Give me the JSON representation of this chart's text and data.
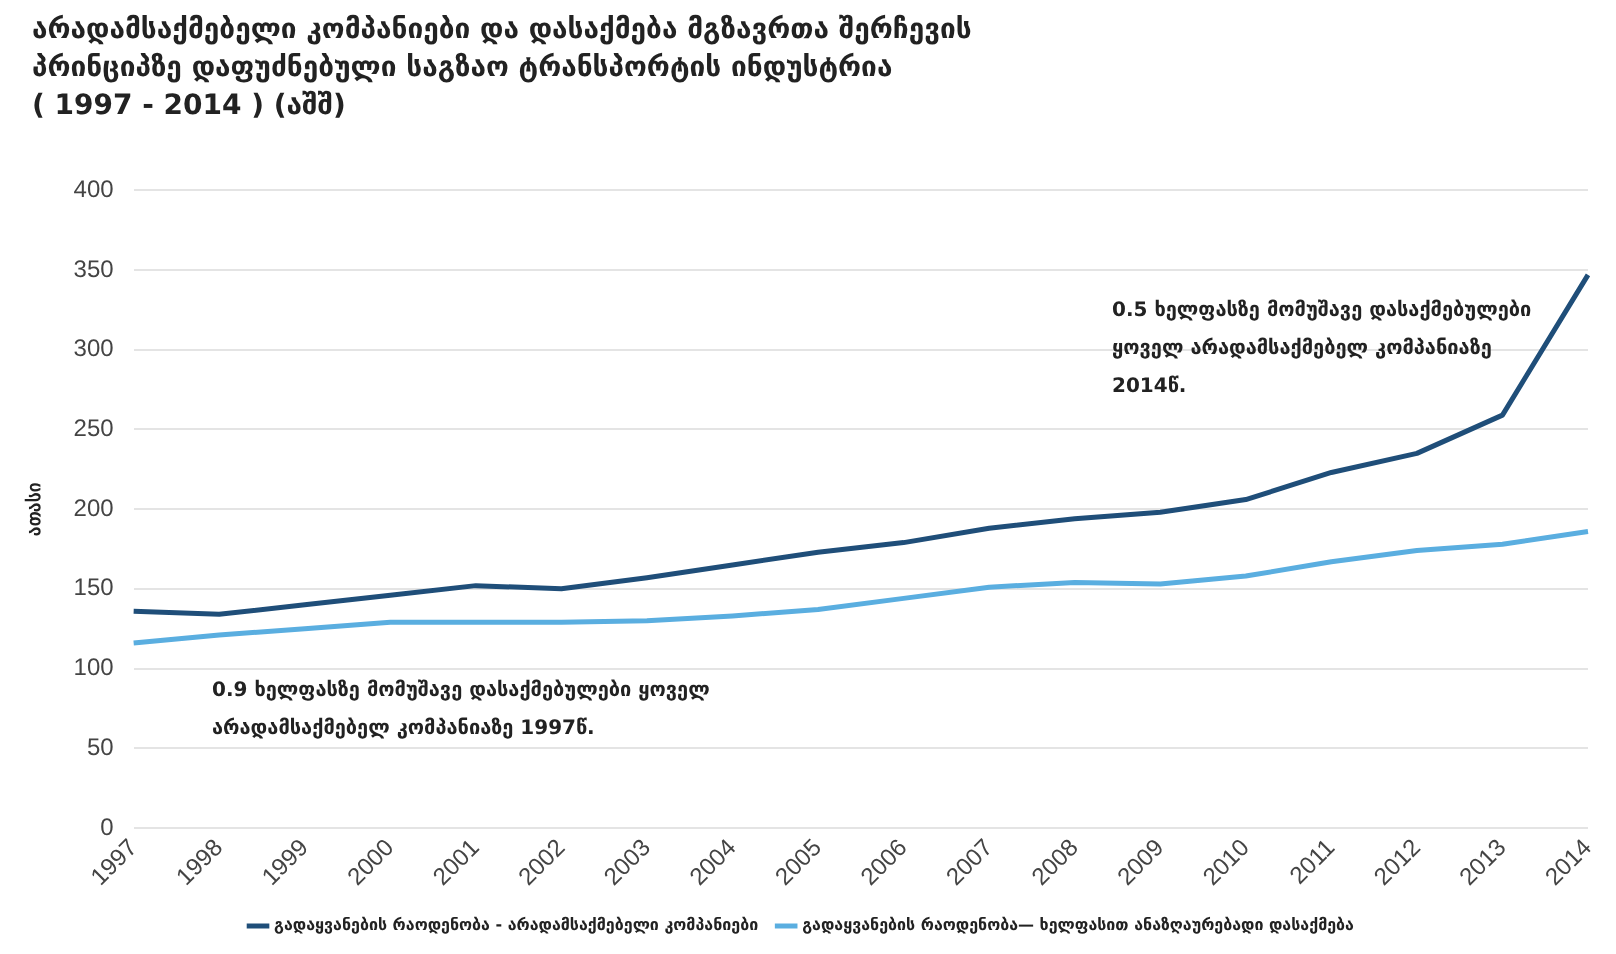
{
  "chart_data": {
    "type": "line",
    "title": "არადამსაქმებელი კომპანიები და დასაქმება მგზავრთა შერჩევის\nპრინციპზე დაფუძნებული საგზაო ტრანსპორტის ინდუსტრია\n( 1997 - 2014 ) (აშშ)",
    "ylabel": "ათასი",
    "categories": [
      "1997",
      "1998",
      "1999",
      "2000",
      "2001",
      "2002",
      "2003",
      "2004",
      "2005",
      "2006",
      "2007",
      "2008",
      "2009",
      "2010",
      "2011",
      "2012",
      "2013",
      "2014"
    ],
    "series": [
      {
        "name": "გადაყვანების რაოდენობა - არადამსაქმებელი კომპანიები",
        "color": "#1f4e79",
        "values": [
          136,
          134,
          140,
          146,
          152,
          150,
          157,
          165,
          173,
          179,
          188,
          194,
          198,
          206,
          223,
          235,
          259,
          347
        ]
      },
      {
        "name": "გადაყვანების რაოდენობა— ხელფასით ანაზღაურებადი დასაქმება",
        "color": "#5aaee0",
        "values": [
          116,
          121,
          125,
          129,
          129,
          129,
          130,
          133,
          137,
          144,
          151,
          154,
          153,
          158,
          167,
          174,
          178,
          186
        ]
      }
    ],
    "ylim": [
      0,
      400
    ],
    "yticks": [
      0,
      50,
      100,
      150,
      200,
      250,
      300,
      350,
      400
    ],
    "grid": "y",
    "legend": "bottom",
    "marker": "none",
    "annotations": [
      "0.5 ხელფასზე მომუშავე დასაქმებულები ყოველ არადამსაქმებელ კომპანიაზე 2014წ.",
      "0.9 ხელფასზე მომუშავე დასაქმებულები ყოველ არადამსაქმებელ კომპანიაზე 1997წ."
    ]
  }
}
